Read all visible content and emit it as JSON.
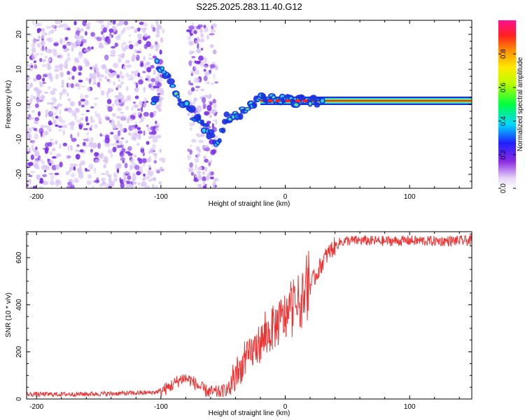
{
  "figure_title": "S225.2025.283.11.40.G12",
  "colors": {
    "snr_line": "#ee3333",
    "scatter_purple": "#7a2ee8",
    "scatter_light": "#d8c4f5",
    "trace_blue": "#1a30e0",
    "trace_cyan": "#22d8e8",
    "trace_green": "#8ee830",
    "trace_red": "#ff2020"
  },
  "chart_data": [
    {
      "type": "heatmap",
      "title": "",
      "xlabel": "Height of straight line (km)",
      "ylabel": "Frequency (Hz)",
      "xlim": [
        -208,
        150
      ],
      "ylim": [
        -24,
        24
      ],
      "xticks": [
        -200,
        -100,
        0,
        100
      ],
      "xtick_labels": [
        "-200",
        "-100",
        "0",
        "100"
      ],
      "yticks": [
        -20,
        -10,
        0,
        10,
        20
      ],
      "ytick_labels": [
        "-20",
        "-10",
        "0",
        "10",
        "20"
      ],
      "noise_region_x": [
        -208,
        -98
      ],
      "noise_strip_x": [
        -78,
        -55
      ],
      "ridge": [
        {
          "x": -104,
          "f": 12,
          "a": 0.15
        },
        {
          "x": -98,
          "f": 10,
          "a": 0.2
        },
        {
          "x": -93,
          "f": 7,
          "a": 0.25
        },
        {
          "x": -88,
          "f": 3,
          "a": 0.3
        },
        {
          "x": -82,
          "f": 0,
          "a": 0.35
        },
        {
          "x": -76,
          "f": -2,
          "a": 0.25
        },
        {
          "x": -72,
          "f": -4,
          "a": 0.2
        },
        {
          "x": -66,
          "f": -6,
          "a": 0.2
        },
        {
          "x": -60,
          "f": -9,
          "a": 0.2
        },
        {
          "x": -54,
          "f": -11,
          "a": 0.2
        },
        {
          "x": -48,
          "f": -4,
          "a": 0.3
        },
        {
          "x": -40,
          "f": -3,
          "a": 0.35
        },
        {
          "x": -33,
          "f": -2,
          "a": 0.35
        },
        {
          "x": -27,
          "f": 0,
          "a": 0.35
        },
        {
          "x": -21,
          "f": 2,
          "a": 0.45
        },
        {
          "x": -14,
          "f": 2,
          "a": 0.65
        },
        {
          "x": -7,
          "f": 1.5,
          "a": 0.8
        },
        {
          "x": 0,
          "f": 1,
          "a": 0.85
        },
        {
          "x": 10,
          "f": 1,
          "a": 0.9
        },
        {
          "x": 25,
          "f": 1,
          "a": 0.9
        },
        {
          "x": 50,
          "f": 1,
          "a": 0.9
        },
        {
          "x": 80,
          "f": 1,
          "a": 0.9
        },
        {
          "x": 110,
          "f": 1,
          "a": 0.9
        },
        {
          "x": 150,
          "f": 1,
          "a": 0.9
        }
      ]
    },
    {
      "type": "line",
      "title": "",
      "xlabel": "Height of straight line (km)",
      "ylabel": "SNR (10 * v/v)",
      "xlim": [
        -208,
        150
      ],
      "ylim": [
        0,
        710
      ],
      "xticks": [
        -200,
        -100,
        0,
        100
      ],
      "xtick_labels": [
        "-200",
        "-100",
        "0",
        "100"
      ],
      "yticks": [
        0,
        200,
        400,
        600
      ],
      "ytick_labels": [
        "0",
        "200",
        "400",
        "600"
      ],
      "series": [
        {
          "name": "SNR",
          "x": [
            -208,
            -180,
            -150,
            -120,
            -105,
            -95,
            -88,
            -82,
            -76,
            -70,
            -64,
            -58,
            -52,
            -46,
            -40,
            -34,
            -28,
            -22,
            -16,
            -10,
            -4,
            2,
            8,
            14,
            20,
            26,
            32,
            38,
            44,
            50,
            60,
            80,
            100,
            120,
            150
          ],
          "values": [
            20,
            20,
            22,
            25,
            28,
            45,
            70,
            90,
            80,
            55,
            35,
            28,
            30,
            45,
            80,
            150,
            190,
            230,
            260,
            300,
            330,
            360,
            390,
            430,
            480,
            540,
            600,
            640,
            665,
            672,
            672,
            670,
            672,
            670,
            672
          ]
        }
      ]
    }
  ],
  "colorbar": {
    "label": "Normalized spectral amplitude",
    "range": [
      0,
      1
    ],
    "ticks": [
      0.0,
      0.2,
      0.4,
      0.6,
      0.8
    ],
    "tick_labels": [
      "0.0",
      "0.2",
      "0.4",
      "0.6",
      "0.8"
    ]
  }
}
